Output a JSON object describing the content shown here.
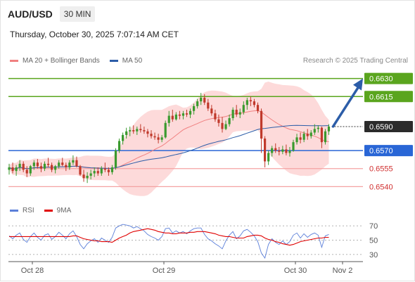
{
  "header": {
    "symbol": "AUD/USD",
    "timeframe": "30 MIN"
  },
  "datetime": "Thursday, October 30, 2025 7:07:14 AM CET",
  "legend": [
    {
      "label": "MA 20 + Bollinger Bands",
      "color": "#f08080"
    },
    {
      "label": "MA 50",
      "color": "#2c5da8"
    }
  ],
  "copyright": "Research © 2025 Trading Central",
  "rsi_legend": [
    {
      "label": "RSI",
      "color": "#5b7fd9"
    },
    {
      "label": "9MA",
      "color": "#e00000"
    }
  ],
  "colors": {
    "up": "#3a9a2e",
    "down": "#c0392b",
    "band_fill": "#fdd6d6",
    "ma20": "#f08080",
    "ma50": "#2c5da8",
    "resistance": "#5aa51e",
    "pivot": "#2966d6",
    "support": "#f4a3a3",
    "arrow": "#2c5da8"
  },
  "chart_data": [
    {
      "type": "candlestick",
      "title": "AUD/USD",
      "x_labels": [
        "Oct 28",
        "Oct 29",
        "Oct 30",
        "Nov 2"
      ],
      "ylim": [
        0.6532,
        0.6638
      ],
      "last_price": 0.659,
      "levels": [
        {
          "value": 0.663,
          "label": "0.6630",
          "kind": "resistance"
        },
        {
          "value": 0.6615,
          "label": "0.6615",
          "kind": "resistance"
        },
        {
          "value": 0.659,
          "label": "0.6590",
          "kind": "last"
        },
        {
          "value": 0.657,
          "label": "0.6570",
          "kind": "pivot"
        },
        {
          "value": 0.6555,
          "label": "0.6555",
          "kind": "support"
        },
        {
          "value": 0.654,
          "label": "0.6540",
          "kind": "support"
        }
      ],
      "forecast_target": 0.663,
      "ohlc": [
        [
          0.6554,
          0.6559,
          0.655,
          0.6556
        ],
        [
          0.6556,
          0.656,
          0.6551,
          0.6553
        ],
        [
          0.6553,
          0.6558,
          0.6549,
          0.6556
        ],
        [
          0.6556,
          0.6562,
          0.6553,
          0.6559
        ],
        [
          0.6559,
          0.6561,
          0.6552,
          0.6554
        ],
        [
          0.6554,
          0.6557,
          0.6548,
          0.6551
        ],
        [
          0.6551,
          0.6558,
          0.6549,
          0.6557
        ],
        [
          0.6557,
          0.6562,
          0.6554,
          0.656
        ],
        [
          0.656,
          0.6563,
          0.6555,
          0.6557
        ],
        [
          0.6557,
          0.656,
          0.6552,
          0.6555
        ],
        [
          0.6555,
          0.6561,
          0.6553,
          0.6559
        ],
        [
          0.6559,
          0.6564,
          0.6556,
          0.6558
        ],
        [
          0.6558,
          0.656,
          0.6552,
          0.6554
        ],
        [
          0.6554,
          0.6558,
          0.6551,
          0.6557
        ],
        [
          0.6557,
          0.6562,
          0.6555,
          0.656
        ],
        [
          0.656,
          0.6564,
          0.6557,
          0.6558
        ],
        [
          0.6558,
          0.656,
          0.6553,
          0.6556
        ],
        [
          0.6556,
          0.6562,
          0.6554,
          0.656
        ],
        [
          0.656,
          0.6566,
          0.6558,
          0.6562
        ],
        [
          0.6562,
          0.6565,
          0.6556,
          0.6557
        ],
        [
          0.6557,
          0.6558,
          0.6549,
          0.655
        ],
        [
          0.655,
          0.6554,
          0.6544,
          0.6547
        ],
        [
          0.6547,
          0.6552,
          0.6543,
          0.6549
        ],
        [
          0.6549,
          0.6554,
          0.6546,
          0.6551
        ],
        [
          0.6551,
          0.6556,
          0.6548,
          0.6553
        ],
        [
          0.6553,
          0.6556,
          0.6549,
          0.6551
        ],
        [
          0.6551,
          0.6557,
          0.6549,
          0.6555
        ],
        [
          0.6555,
          0.656,
          0.6552,
          0.6554
        ],
        [
          0.6554,
          0.6556,
          0.6549,
          0.6552
        ],
        [
          0.6552,
          0.6558,
          0.655,
          0.6556
        ],
        [
          0.6556,
          0.6572,
          0.6554,
          0.657
        ],
        [
          0.657,
          0.658,
          0.6568,
          0.6578
        ],
        [
          0.6578,
          0.6585,
          0.6575,
          0.6583
        ],
        [
          0.6583,
          0.6589,
          0.658,
          0.6586
        ],
        [
          0.6586,
          0.659,
          0.6582,
          0.6587
        ],
        [
          0.6587,
          0.6591,
          0.6584,
          0.6586
        ],
        [
          0.6586,
          0.659,
          0.6583,
          0.6588
        ],
        [
          0.6588,
          0.6592,
          0.6585,
          0.6587
        ],
        [
          0.6587,
          0.659,
          0.6584,
          0.6586
        ],
        [
          0.6586,
          0.6588,
          0.6581,
          0.6584
        ],
        [
          0.6584,
          0.6587,
          0.658,
          0.6582
        ],
        [
          0.6582,
          0.6585,
          0.6579,
          0.6581
        ],
        [
          0.6581,
          0.6584,
          0.6576,
          0.6579
        ],
        [
          0.6579,
          0.6583,
          0.6577,
          0.6581
        ],
        [
          0.6581,
          0.6595,
          0.658,
          0.6593
        ],
        [
          0.6593,
          0.6603,
          0.659,
          0.6599
        ],
        [
          0.6599,
          0.6604,
          0.6594,
          0.6596
        ],
        [
          0.6596,
          0.6602,
          0.6595,
          0.66
        ],
        [
          0.66,
          0.6603,
          0.6596,
          0.6599
        ],
        [
          0.6599,
          0.6603,
          0.6596,
          0.6601
        ],
        [
          0.6601,
          0.6604,
          0.6598,
          0.66
        ],
        [
          0.66,
          0.6605,
          0.6597,
          0.6603
        ],
        [
          0.6603,
          0.6609,
          0.66,
          0.6607
        ],
        [
          0.6607,
          0.6613,
          0.6605,
          0.6611
        ],
        [
          0.6611,
          0.6618,
          0.6608,
          0.6614
        ],
        [
          0.6614,
          0.6617,
          0.6608,
          0.661
        ],
        [
          0.661,
          0.6613,
          0.6603,
          0.6605
        ],
        [
          0.6605,
          0.6608,
          0.6599,
          0.6601
        ],
        [
          0.6601,
          0.6604,
          0.6594,
          0.6596
        ],
        [
          0.6596,
          0.66,
          0.659,
          0.6593
        ],
        [
          0.6593,
          0.6598,
          0.6585,
          0.6588
        ],
        [
          0.6588,
          0.6595,
          0.6587,
          0.6592
        ],
        [
          0.6592,
          0.66,
          0.659,
          0.6597
        ],
        [
          0.6597,
          0.6606,
          0.6595,
          0.6604
        ],
        [
          0.6604,
          0.6608,
          0.6598,
          0.66
        ],
        [
          0.66,
          0.6605,
          0.6597,
          0.6602
        ],
        [
          0.6602,
          0.6611,
          0.66,
          0.6608
        ],
        [
          0.6608,
          0.6614,
          0.6604,
          0.6612
        ],
        [
          0.6612,
          0.6615,
          0.6607,
          0.6611
        ],
        [
          0.6611,
          0.6613,
          0.6606,
          0.6608
        ],
        [
          0.6608,
          0.661,
          0.6601,
          0.6603
        ],
        [
          0.6603,
          0.6605,
          0.6568,
          0.658
        ],
        [
          0.658,
          0.6582,
          0.6556,
          0.6561
        ],
        [
          0.6561,
          0.657,
          0.6558,
          0.6568
        ],
        [
          0.6568,
          0.6574,
          0.6565,
          0.6572
        ],
        [
          0.6572,
          0.6576,
          0.6568,
          0.657
        ],
        [
          0.657,
          0.6573,
          0.6566,
          0.6569
        ],
        [
          0.6569,
          0.6574,
          0.6567,
          0.6571
        ],
        [
          0.6571,
          0.6575,
          0.6566,
          0.6568
        ],
        [
          0.6568,
          0.6573,
          0.6565,
          0.657
        ],
        [
          0.657,
          0.6579,
          0.6569,
          0.6577
        ],
        [
          0.6577,
          0.6584,
          0.6575,
          0.6581
        ],
        [
          0.6581,
          0.6585,
          0.6576,
          0.6579
        ],
        [
          0.6579,
          0.6586,
          0.6577,
          0.6584
        ],
        [
          0.6584,
          0.6588,
          0.6579,
          0.6582
        ],
        [
          0.6582,
          0.6587,
          0.658,
          0.6585
        ],
        [
          0.6585,
          0.6592,
          0.6583,
          0.6588
        ],
        [
          0.6588,
          0.6591,
          0.6585,
          0.6589
        ],
        [
          0.6589,
          0.659,
          0.6572,
          0.6577
        ],
        [
          0.6577,
          0.6588,
          0.6575,
          0.6586
        ],
        [
          0.6586,
          0.6592,
          0.6583,
          0.659
        ]
      ]
    },
    {
      "type": "line",
      "title": "RSI",
      "yticks": [
        30,
        50,
        70
      ],
      "ylim": [
        25,
        78
      ],
      "series": [
        {
          "name": "RSI",
          "values": [
            56,
            52,
            57,
            60,
            51,
            47,
            55,
            60,
            54,
            50,
            57,
            59,
            51,
            55,
            61,
            57,
            52,
            59,
            63,
            55,
            44,
            38,
            45,
            49,
            52,
            47,
            53,
            50,
            47,
            54,
            67,
            70,
            72,
            71,
            70,
            67,
            69,
            66,
            63,
            58,
            55,
            53,
            50,
            55,
            66,
            67,
            60,
            63,
            60,
            62,
            59,
            63,
            66,
            67,
            67,
            58,
            52,
            49,
            45,
            42,
            38,
            49,
            57,
            62,
            52,
            56,
            63,
            65,
            61,
            56,
            48,
            32,
            25,
            44,
            52,
            47,
            44,
            49,
            44,
            48,
            57,
            60,
            53,
            59,
            54,
            58,
            60,
            57,
            40,
            56,
            58
          ]
        },
        {
          "name": "9MA",
          "values": [
            55,
            55,
            55,
            55,
            55,
            55,
            55,
            55,
            55,
            55,
            55,
            55,
            55,
            55,
            55,
            55,
            55,
            55,
            56,
            56,
            54,
            52,
            51,
            50,
            49,
            49,
            48,
            48,
            48,
            47,
            50,
            53,
            55,
            57,
            60,
            62,
            63,
            64,
            65,
            66,
            65,
            64,
            62,
            61,
            60,
            60,
            59,
            59,
            60,
            60,
            60,
            61,
            61,
            62,
            62,
            62,
            61,
            60,
            59,
            57,
            56,
            55,
            55,
            54,
            53,
            53,
            53,
            55,
            56,
            57,
            57,
            56,
            53,
            51,
            50,
            48,
            47,
            45,
            44,
            43,
            44,
            46,
            48,
            49,
            50,
            51,
            52,
            53,
            53,
            54,
            54
          ]
        }
      ]
    }
  ]
}
